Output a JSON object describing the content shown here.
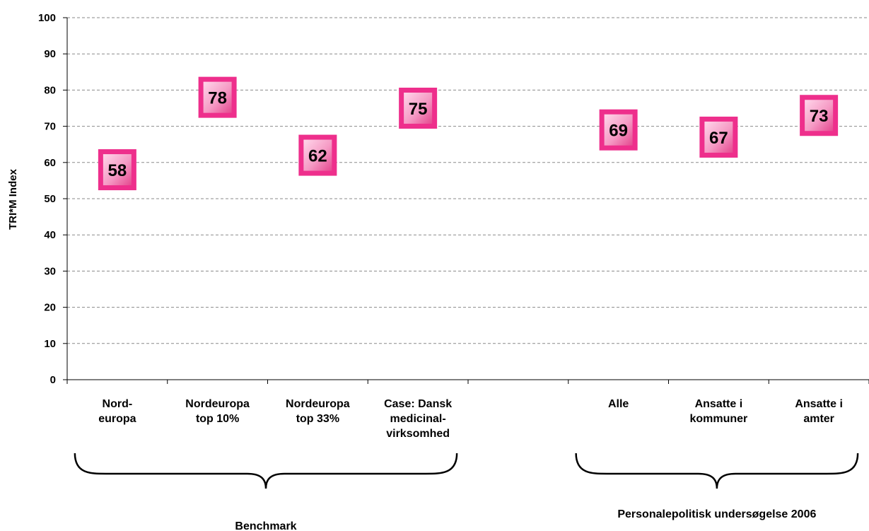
{
  "chart_data": {
    "type": "scatter",
    "ylabel": "TRI*M Index",
    "ylim": [
      0,
      100
    ],
    "yticks": [
      0,
      10,
      20,
      30,
      40,
      50,
      60,
      70,
      80,
      90,
      100
    ],
    "grid": true,
    "categories": [
      {
        "lines": [
          "Nord-",
          "europa"
        ],
        "value": 58
      },
      {
        "lines": [
          "Nordeuropa",
          "top 10%"
        ],
        "value": 78
      },
      {
        "lines": [
          "Nordeuropa",
          "top 33%"
        ],
        "value": 62
      },
      {
        "lines": [
          "Case: Dansk",
          "medicinal-",
          "virksomhed"
        ],
        "value": 75
      },
      null,
      {
        "lines": [
          "Alle"
        ],
        "value": 69
      },
      {
        "lines": [
          "Ansatte i",
          "kommuner"
        ],
        "value": 67
      },
      {
        "lines": [
          "Ansatte i",
          "amter"
        ],
        "value": 73
      }
    ],
    "groups": [
      {
        "label": "Benchmark",
        "from": 0,
        "to": 3
      },
      {
        "label": "Personalepolitisk undersøgelse 2006",
        "from": 5,
        "to": 7
      }
    ],
    "marker_color": "#ee2f8c"
  }
}
